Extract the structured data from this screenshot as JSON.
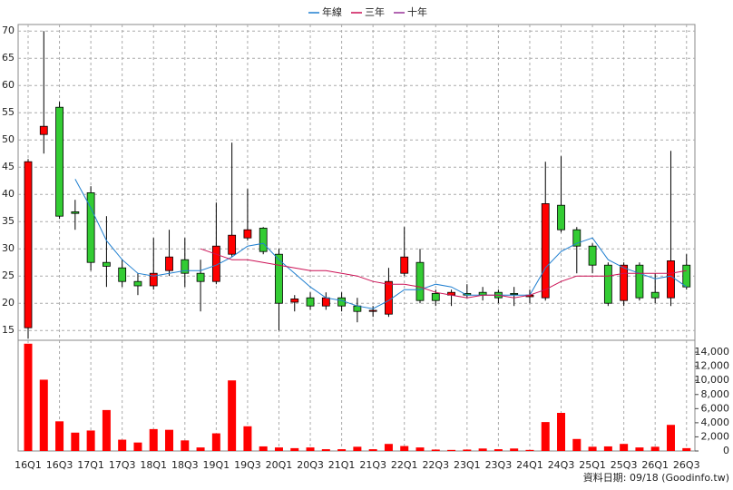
{
  "chart_data": {
    "type": "candlestick",
    "categories": [
      "16Q1",
      null,
      "16Q3",
      null,
      "17Q1",
      null,
      "17Q3",
      null,
      "18Q1",
      null,
      "18Q3",
      null,
      "19Q1",
      null,
      "19Q3",
      null,
      "20Q1",
      null,
      "20Q3",
      null,
      "21Q1",
      null,
      "21Q3",
      null,
      "22Q1",
      null,
      "22Q3",
      null,
      "23Q1",
      null,
      "23Q3",
      null,
      "24Q1",
      null,
      "24Q3",
      null,
      "25Q1",
      null,
      "25Q3",
      null,
      "26Q1",
      null,
      "26Q3"
    ],
    "open": [
      15.5,
      51,
      56,
      36.8,
      40.3,
      27.5,
      26.5,
      24,
      23.2,
      26,
      28,
      25.5,
      24,
      29,
      32,
      33.8,
      29,
      20.2,
      21,
      19.5,
      21,
      19.5,
      18.5,
      18,
      25.5,
      27.5,
      21.8,
      21.5,
      21.8,
      22,
      22,
      21.8,
      21.2,
      21,
      38,
      33.5,
      30.5,
      27,
      20.5,
      27,
      22,
      21,
      27
    ],
    "high": [
      46.5,
      70,
      57,
      39,
      41.5,
      36,
      28,
      25.5,
      32,
      33.5,
      32,
      28,
      38.5,
      49.5,
      41,
      34,
      30,
      21.5,
      22,
      22,
      22,
      21,
      19.5,
      26.5,
      34,
      30,
      22.5,
      22.5,
      23.5,
      23,
      22.5,
      23,
      22.5,
      46,
      47,
      34,
      31,
      27.5,
      27.5,
      27.5,
      25.5,
      48,
      29
    ],
    "low": [
      13.5,
      47.5,
      35.5,
      33.5,
      26,
      23,
      23,
      21.5,
      22.5,
      25,
      23,
      18.5,
      23.5,
      28.5,
      31.5,
      29,
      15,
      18.5,
      18.8,
      18.8,
      18.5,
      16.5,
      17.5,
      17.5,
      25,
      20,
      19.5,
      19.5,
      21,
      20.5,
      20,
      19.5,
      20,
      20.5,
      33,
      25.5,
      25.5,
      19.5,
      19.5,
      20.5,
      20,
      19.5,
      22.5
    ],
    "close": [
      46,
      52.5,
      36,
      36.5,
      27.5,
      26.8,
      24,
      23.2,
      25.5,
      28.5,
      25.5,
      24,
      30.5,
      32.5,
      33.5,
      29.5,
      20,
      20.8,
      19.5,
      21,
      19.5,
      18.5,
      18.7,
      24,
      28.5,
      20.5,
      20.5,
      22,
      21.5,
      21.5,
      21,
      21.6,
      21.5,
      38.3,
      33.5,
      30.5,
      27,
      20,
      27,
      21,
      21,
      27.8,
      23
    ],
    "up_color": "#ff0000",
    "down_color": "#33cc33",
    "series": [
      {
        "name": "年線",
        "color": "#1f7fd0",
        "values": [
          null,
          null,
          null,
          42.8,
          37.5,
          31.5,
          28,
          25.5,
          25,
          25.5,
          26,
          26,
          27,
          28.5,
          30.5,
          31,
          28,
          25.5,
          23,
          21,
          20.5,
          19.5,
          19,
          20.5,
          22.5,
          22.5,
          23.5,
          23,
          21.5,
          21.5,
          21.5,
          21.5,
          21.5,
          26.5,
          29.5,
          31,
          32,
          28,
          26.5,
          25.5,
          24.5,
          25,
          23
        ]
      },
      {
        "name": "三年",
        "color": "#cc1155",
        "values": [
          null,
          null,
          null,
          null,
          null,
          null,
          null,
          null,
          null,
          null,
          null,
          30,
          29,
          28,
          28,
          27.5,
          27,
          26.5,
          26,
          26,
          25.5,
          25,
          24,
          23.5,
          23.5,
          23,
          22,
          21.5,
          21,
          21.5,
          21.5,
          21,
          21.5,
          22.5,
          24,
          25,
          25,
          25,
          25.5,
          25.5,
          25.5,
          25.5,
          26
        ]
      },
      {
        "name": "十年",
        "color": "#993399",
        "values": [
          null,
          null,
          null,
          null,
          null,
          null,
          null,
          null,
          null,
          null,
          null,
          null,
          null,
          null,
          null,
          null,
          null,
          null,
          null,
          null,
          null,
          null,
          null,
          null,
          null,
          null,
          null,
          null,
          null,
          null,
          null,
          null,
          null,
          null,
          null,
          null,
          null,
          null,
          null,
          null,
          null,
          null,
          null
        ]
      }
    ],
    "ylim": [
      13.2,
      71.2
    ],
    "yticks": [
      15,
      20,
      25,
      30,
      35,
      40,
      45,
      50,
      55,
      60,
      65,
      70
    ],
    "grid": true,
    "legend": "top",
    "volume": {
      "color": "#ff0000",
      "values": [
        15200,
        10100,
        4200,
        2600,
        2900,
        5800,
        1600,
        1200,
        3100,
        3000,
        1500,
        500,
        2500,
        10000,
        3500,
        650,
        500,
        400,
        500,
        250,
        250,
        600,
        250,
        1000,
        700,
        500,
        200,
        150,
        200,
        350,
        250,
        350,
        150,
        4100,
        5400,
        1700,
        600,
        650,
        1000,
        500,
        600,
        3700,
        400
      ],
      "ylim": [
        0,
        15300
      ],
      "yticks": [
        0,
        {
          "value": 2000,
          "label": "2,000"
        },
        {
          "value": 4000,
          "label": "4,000"
        },
        {
          "value": 6000,
          "label": "6,000"
        },
        {
          "value": 8000,
          "label": "8,000"
        },
        {
          "value": 10000,
          "label": "10,000"
        },
        {
          "value": 12000,
          "label": "12,000"
        },
        {
          "value": 14000,
          "label": "14,000"
        }
      ]
    },
    "footer": "資料日期: 09/18 (Goodinfo.tw)"
  }
}
